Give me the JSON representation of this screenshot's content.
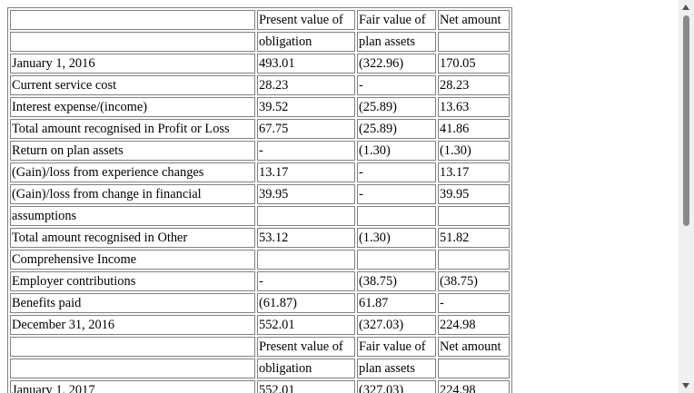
{
  "table": {
    "rows": [
      [
        "",
        "Present value of",
        "Fair value of",
        "Net amount"
      ],
      [
        "",
        "obligation",
        "plan assets",
        ""
      ],
      [
        "January 1, 2016",
        "493.01",
        "(322.96)",
        "170.05"
      ],
      [
        "Current service cost",
        "28.23",
        "-",
        "28.23"
      ],
      [
        "Interest expense/(income)",
        "39.52",
        "(25.89)",
        "13.63"
      ],
      [
        "Total amount recognised in Profit or Loss",
        "67.75",
        "(25.89)",
        "41.86"
      ],
      [
        "Return on plan assets",
        "-",
        "(1.30)",
        "(1.30)"
      ],
      [
        "(Gain)/loss from experience changes",
        "13.17",
        "-",
        "13.17"
      ],
      [
        "(Gain)/loss from change in financial",
        "39.95",
        "-",
        "39.95"
      ],
      [
        "assumptions",
        "",
        "",
        ""
      ],
      [
        "Total amount recognised in Other",
        "53.12",
        "(1.30)",
        "51.82"
      ],
      [
        "Comprehensive Income",
        "",
        "",
        ""
      ],
      [
        "Employer contributions",
        "-",
        "(38.75)",
        "(38.75)"
      ],
      [
        "Benefits paid",
        "(61.87)",
        "61.87",
        "-"
      ],
      [
        "December 31, 2016",
        "552.01",
        "(327.03)",
        "224.98"
      ],
      [
        "",
        "Present value of",
        "Fair value of",
        "Net amount"
      ],
      [
        "",
        "obligation",
        "plan assets",
        ""
      ],
      [
        "January 1, 2017",
        "552.01",
        "(327.03)",
        "224.98"
      ]
    ]
  },
  "scrollbar": {
    "up_icon": "scroll-up-arrow-icon",
    "down_icon": "scroll-down-arrow-icon",
    "scroll_fraction": 0.0
  }
}
